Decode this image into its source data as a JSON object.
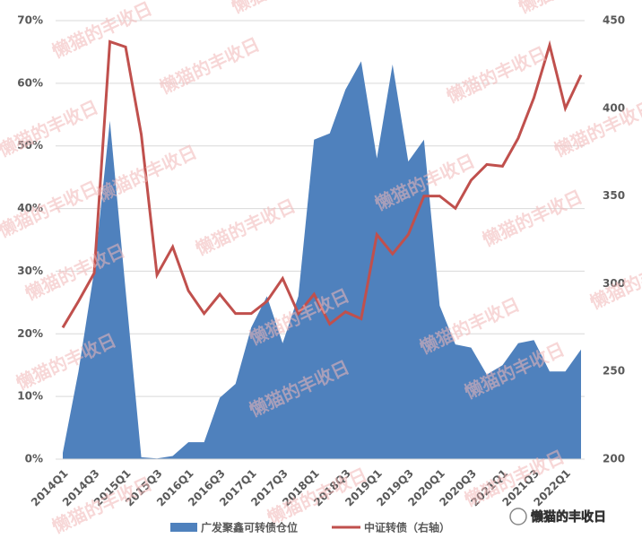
{
  "chart_data": {
    "type": "area-line",
    "categories": [
      "2014Q1",
      null,
      "2014Q3",
      null,
      "2015Q1",
      null,
      "2015Q3",
      null,
      "2016Q1",
      null,
      "2016Q3",
      null,
      "2017Q1",
      null,
      "2017Q3",
      null,
      "2018Q1",
      null,
      "2018Q3",
      null,
      "2019Q1",
      null,
      "2019Q3",
      null,
      "2020Q1",
      null,
      "2020Q3",
      null,
      "2021Q1",
      null,
      "2021Q3",
      null,
      "2022Q1",
      null
    ],
    "series": [
      {
        "name": "广发聚鑫可转债仓位",
        "color": "#4f81bd",
        "axis": "y",
        "kind": "area",
        "values": [
          1,
          14,
          30,
          54,
          27,
          0.3,
          0.1,
          0.5,
          2.7,
          2.7,
          9.8,
          12,
          21,
          26,
          18.5,
          26,
          51,
          52,
          59,
          63.5,
          48,
          63,
          47.5,
          51,
          24.5,
          18.3,
          17.8,
          13.5,
          15,
          18.5,
          19,
          14,
          14,
          17.5
        ]
      },
      {
        "name": "中证转债（右轴）",
        "color": "#c0504d",
        "axis": "y2",
        "kind": "line",
        "values": [
          275,
          290,
          306,
          438,
          435,
          385,
          305,
          321,
          296,
          283,
          294,
          283,
          283,
          290,
          303,
          283,
          294,
          277,
          284,
          280,
          328,
          317,
          328,
          350,
          350,
          343,
          359,
          368,
          367,
          383,
          406,
          436,
          400,
          419
        ]
      }
    ],
    "ylim": [
      0,
      70
    ],
    "yticks": [
      {
        "value": 0,
        "label": "0%"
      },
      {
        "value": 10,
        "label": "10%"
      },
      {
        "value": 20,
        "label": "20%"
      },
      {
        "value": 30,
        "label": "30%"
      },
      {
        "value": 40,
        "label": "40%"
      },
      {
        "value": 50,
        "label": "50%"
      },
      {
        "value": 60,
        "label": "60%"
      },
      {
        "value": 70,
        "label": "70%"
      }
    ],
    "y2lim": [
      200,
      450
    ],
    "y2ticks": [
      200,
      250,
      300,
      350,
      400,
      450
    ],
    "grid": true,
    "watermark": "懒猫的丰收日",
    "logo_text": "懒猫的丰收日"
  }
}
